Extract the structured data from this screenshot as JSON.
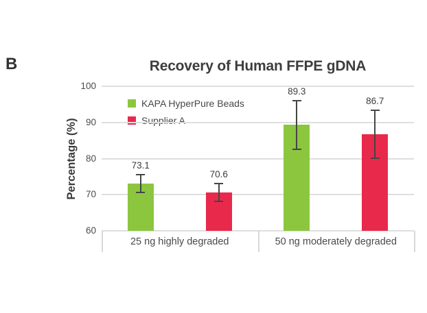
{
  "panel_label": "B",
  "chart_data": {
    "type": "bar",
    "title": "Recovery of Human FFPE gDNA",
    "categories": [
      "25 ng highly degraded",
      "50 ng moderately degraded"
    ],
    "series": [
      {
        "name": "KAPA HyperPure Beads",
        "color": "#8CC63F",
        "values": [
          73.1,
          89.3
        ],
        "errors": [
          2.5,
          6.8
        ]
      },
      {
        "name": "Supplier A",
        "color": "#E9294C",
        "values": [
          70.6,
          86.7
        ],
        "errors": [
          2.4,
          6.6
        ]
      }
    ],
    "data_labels": [
      "73.1",
      "70.6",
      "89.3",
      "86.7"
    ],
    "ylabel": "Percentage (%)",
    "xlabel": "",
    "yticks": [
      100,
      90,
      80,
      70,
      60
    ],
    "ylim": [
      60,
      100
    ],
    "grid": "horizontal",
    "grid_color": "#DEDEDE",
    "error_bar_color": "#454545",
    "text_color": "#3D3D3D",
    "legend_position": "top-left-inside",
    "error_bars": true
  }
}
